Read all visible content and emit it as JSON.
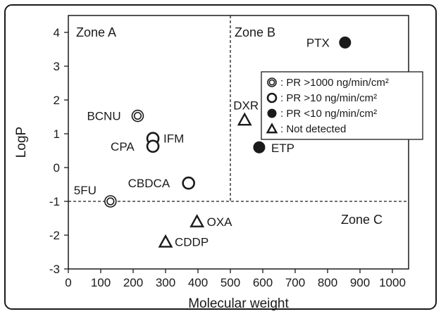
{
  "chart_data": {
    "type": "scatter",
    "xlabel": "Molecular weight",
    "ylabel": "LogP",
    "xlim": [
      0,
      1050
    ],
    "ylim": [
      -3,
      4.5
    ],
    "x_ticks": [
      "0",
      "100",
      "200",
      "300",
      "400",
      "500",
      "600",
      "700",
      "800",
      "900",
      "1000"
    ],
    "y_ticks": [
      "4",
      "3",
      "2",
      "1",
      "0",
      "-1",
      "-2",
      "-3"
    ],
    "grid": false,
    "zone_boundaries": {
      "x": 500,
      "y": -1
    },
    "zones": [
      {
        "label": "Zone A"
      },
      {
        "label": "Zone B"
      },
      {
        "label": "Zone C"
      }
    ],
    "points": [
      {
        "label": "5FU",
        "x": 130,
        "y": -1.0,
        "group": "pr_gt_1000"
      },
      {
        "label": "BCNU",
        "x": 214,
        "y": 1.53,
        "group": "pr_gt_1000"
      },
      {
        "label": "IFM",
        "x": 261,
        "y": 0.86,
        "group": "pr_gt_10"
      },
      {
        "label": "CPA",
        "x": 261,
        "y": 0.63,
        "group": "pr_gt_10"
      },
      {
        "label": "CBDCA",
        "x": 371,
        "y": -0.46,
        "group": "pr_gt_10"
      },
      {
        "label": "PTX",
        "x": 854,
        "y": 3.7,
        "group": "pr_lt_10"
      },
      {
        "label": "ETP",
        "x": 589,
        "y": 0.6,
        "group": "pr_lt_10"
      },
      {
        "label": "DXR",
        "x": 544,
        "y": 1.41,
        "group": "not_detected"
      },
      {
        "label": "OXA",
        "x": 397,
        "y": -1.6,
        "group": "not_detected"
      },
      {
        "label": "CDDP",
        "x": 300,
        "y": -2.2,
        "group": "not_detected"
      }
    ],
    "legend": {
      "placement": "right",
      "entries": [
        {
          "group": "pr_gt_1000",
          "marker": "double-circle-icon",
          "label": ": PR >1000 ng/min/cm²"
        },
        {
          "group": "pr_gt_10",
          "marker": "open-circle-icon",
          "label": ": PR >10 ng/min/cm²"
        },
        {
          "group": "pr_lt_10",
          "marker": "filled-circle-icon",
          "label": ": PR <10 ng/min/cm²"
        },
        {
          "group": "not_detected",
          "marker": "triangle-icon",
          "label": ": Not detected"
        }
      ]
    },
    "colors": {
      "ink": "#1a1a1a",
      "background": "#ffffff"
    }
  }
}
